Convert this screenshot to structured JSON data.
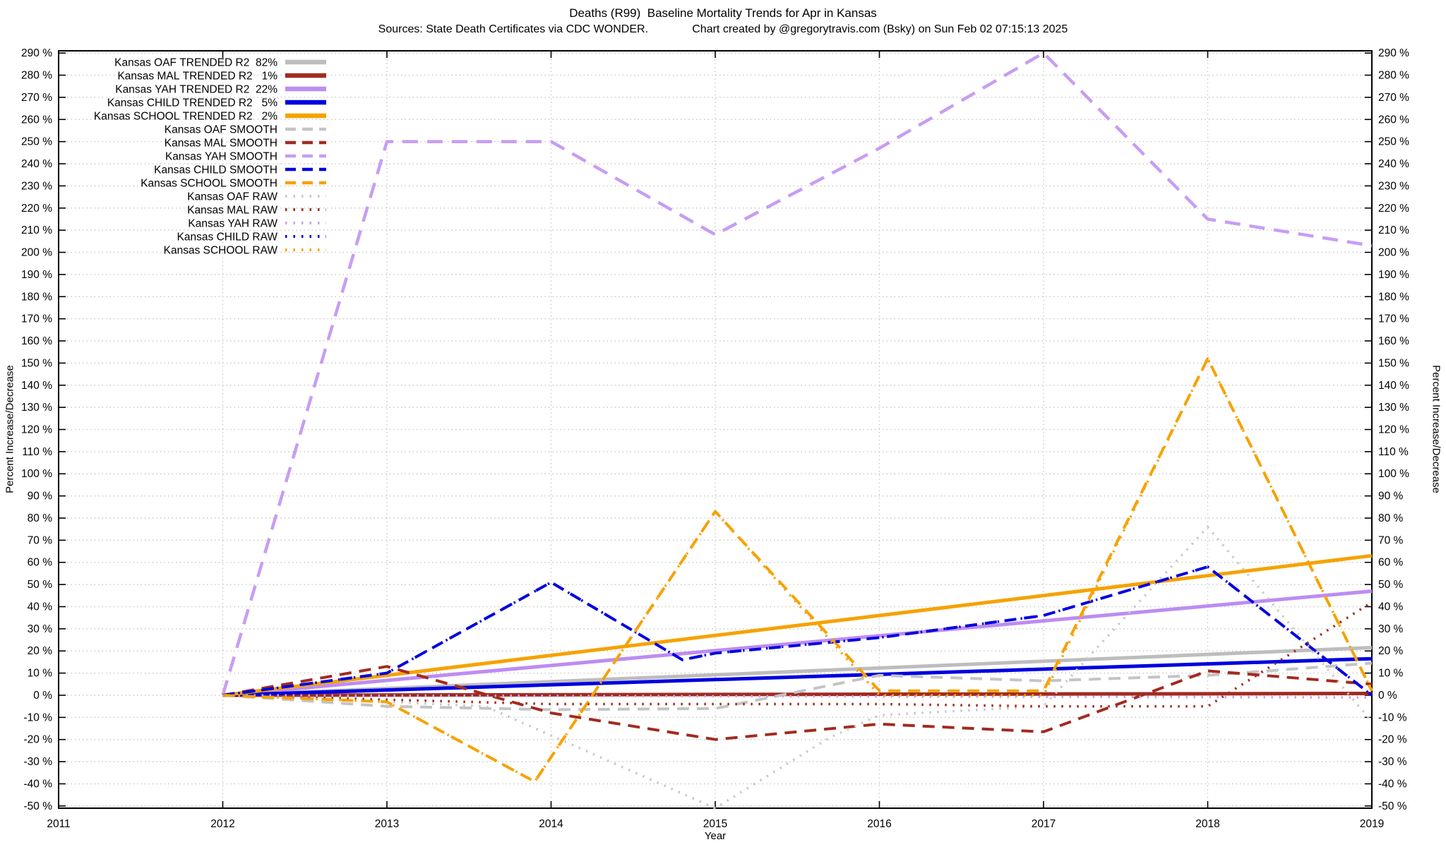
{
  "header": {
    "title": "Deaths (R99)  Baseline Mortality Trends for Apr in Kansas",
    "subtitle": "Sources: State Death Certificates via CDC WONDER.              Chart created by @gregorytravis.com (Bsky) on Sun Feb 02 07:15:13 2025"
  },
  "colors": {
    "gray": "#bdbdbd",
    "dark_red": "#a12b20",
    "violet": "#bd8cf2",
    "violet_light": "#c79df4",
    "blue": "#0000e0",
    "orange": "#f6a201",
    "grid": "#c9c9c9",
    "axis": "#000000",
    "background": "#ffffff"
  },
  "chart_data": {
    "type": "line",
    "title": "Deaths (R99)  Baseline Mortality Trends for Apr in Kansas",
    "subtitle": "Sources: State Death Certificates via CDC WONDER.  Chart created by @gregorytravis.com (Bsky) on Sun Feb 02 07:15:13 2025",
    "xlabel": "Year",
    "ylabel": "Percent Increase/Decrease",
    "y2label": "Percent Increase/Decrease",
    "xlim": [
      2011,
      2019
    ],
    "ylim": [
      -51,
      291
    ],
    "x_ticks": [
      2011,
      2012,
      2013,
      2014,
      2015,
      2016,
      2017,
      2018,
      2019
    ],
    "y_ticks": {
      "min": -50,
      "max": 290,
      "step": 10,
      "suffix": " %"
    },
    "grid": true,
    "legend_position": "top-left",
    "series": [
      {
        "key": "oaf-trended",
        "legend_label": "Kansas OAF TRENDED R2  82%",
        "r2_percent": 82,
        "color": "#bdbdbd",
        "style": "solid",
        "width": 5,
        "points": [
          [
            2012,
            0
          ],
          [
            2019,
            21.5
          ]
        ]
      },
      {
        "key": "mal-trended",
        "legend_label": "Kansas MAL TRENDED R2   1%",
        "r2_percent": 1,
        "color": "#a12b20",
        "style": "solid",
        "width": 5,
        "points": [
          [
            2012,
            0
          ],
          [
            2019,
            0.8
          ]
        ]
      },
      {
        "key": "yah-trended",
        "legend_label": "Kansas YAH TRENDED R2  22%",
        "r2_percent": 22,
        "color": "#bd8cf2",
        "style": "solid",
        "width": 5,
        "points": [
          [
            2012,
            0
          ],
          [
            2019,
            47
          ]
        ]
      },
      {
        "key": "child-trended",
        "legend_label": "Kansas CHILD TRENDED R2   5%",
        "r2_percent": 5,
        "color": "#0000e0",
        "style": "solid",
        "width": 5,
        "points": [
          [
            2012,
            0
          ],
          [
            2019,
            16.5
          ]
        ]
      },
      {
        "key": "school-trended",
        "legend_label": "Kansas SCHOOL TRENDED R2   2%",
        "r2_percent": 2,
        "color": "#f6a201",
        "style": "solid",
        "width": 5,
        "points": [
          [
            2012,
            0
          ],
          [
            2019,
            63
          ]
        ]
      },
      {
        "key": "oaf-smooth",
        "legend_label": "Kansas OAF SMOOTH",
        "color": "#c4c4c4",
        "style": "dashed",
        "width": 4,
        "points": [
          [
            2012,
            0
          ],
          [
            2013,
            -5
          ],
          [
            2014,
            -6.5
          ],
          [
            2015,
            -6
          ],
          [
            2016,
            9
          ],
          [
            2017,
            6.5
          ],
          [
            2018,
            9
          ],
          [
            2019,
            14.5
          ]
        ]
      },
      {
        "key": "mal-smooth",
        "legend_label": "Kansas MAL SMOOTH",
        "color": "#a12b20",
        "style": "dashed",
        "width": 4,
        "points": [
          [
            2012,
            0
          ],
          [
            2013,
            13
          ],
          [
            2014,
            -8
          ],
          [
            2015,
            -20
          ],
          [
            2016,
            -13
          ],
          [
            2017,
            -16.5
          ],
          [
            2018,
            11
          ],
          [
            2019,
            5
          ]
        ]
      },
      {
        "key": "yah-smooth",
        "legend_label": "Kansas YAH SMOOTH",
        "color": "#c79df4",
        "style": "dashed",
        "width": 4.5,
        "dash": "22 13",
        "points": [
          [
            2012,
            0
          ],
          [
            2013,
            250
          ],
          [
            2014,
            250
          ],
          [
            2015,
            208
          ],
          [
            2016,
            247
          ],
          [
            2017,
            290
          ],
          [
            2018,
            215
          ],
          [
            2019,
            203
          ]
        ]
      },
      {
        "key": "child-smooth",
        "legend_label": "Kansas CHILD SMOOTH",
        "color": "#0000e0",
        "style": "dashed",
        "width": 4,
        "points": [
          [
            2012,
            0
          ],
          [
            2013,
            10
          ],
          [
            2014,
            51
          ],
          [
            2014.8,
            16
          ],
          [
            2015,
            19
          ],
          [
            2016,
            26
          ],
          [
            2017,
            36
          ],
          [
            2018,
            58
          ],
          [
            2019,
            0
          ]
        ]
      },
      {
        "key": "school-smooth",
        "legend_label": "Kansas SCHOOL SMOOTH",
        "color": "#f6a201",
        "style": "dashed",
        "width": 4,
        "points": [
          [
            2012,
            0
          ],
          [
            2013,
            -3
          ],
          [
            2013.9,
            -39
          ],
          [
            2015,
            83
          ],
          [
            2016,
            2
          ],
          [
            2017,
            2
          ],
          [
            2018,
            152
          ],
          [
            2019,
            2
          ]
        ]
      },
      {
        "key": "oaf-raw",
        "legend_label": "Kansas OAF RAW",
        "color": "#c9c9c9",
        "style": "dotted",
        "width": 3.5,
        "points": [
          [
            2012,
            0
          ],
          [
            2013,
            -3
          ],
          [
            2013.6,
            -5
          ],
          [
            2015,
            -51
          ],
          [
            2015.7,
            -19
          ],
          [
            2016,
            -9
          ],
          [
            2017,
            -5
          ],
          [
            2018,
            76
          ],
          [
            2019,
            -12
          ]
        ]
      },
      {
        "key": "mal-raw",
        "legend_label": "Kansas MAL RAW",
        "color": "#a12b20",
        "style": "dotted",
        "width": 3.5,
        "points": [
          [
            2012,
            0
          ],
          [
            2013,
            -2
          ],
          [
            2014,
            -4
          ],
          [
            2016,
            -4
          ],
          [
            2017,
            -5
          ],
          [
            2018,
            -5
          ],
          [
            2019,
            42
          ]
        ]
      },
      {
        "key": "yah-raw",
        "legend_label": "Kansas YAH RAW",
        "color": "#c9a1f0",
        "style": "dotted",
        "width": 3.5,
        "points": [
          [
            2012,
            0
          ],
          [
            2019,
            -1
          ]
        ]
      },
      {
        "key": "child-raw",
        "legend_label": "Kansas CHILD RAW",
        "color": "#0000e0",
        "style": "dotted",
        "width": 3.5,
        "points": [
          [
            2012,
            0
          ],
          [
            2013,
            10
          ],
          [
            2014,
            51
          ],
          [
            2014.8,
            16
          ],
          [
            2015,
            19
          ],
          [
            2016,
            26
          ],
          [
            2017,
            36
          ],
          [
            2018,
            58
          ],
          [
            2019,
            0
          ]
        ]
      },
      {
        "key": "school-raw",
        "legend_label": "Kansas SCHOOL RAW",
        "color": "#f6a201",
        "style": "dotted",
        "width": 3.5,
        "points": [
          [
            2012,
            0
          ],
          [
            2013,
            -3
          ],
          [
            2013.9,
            -39
          ],
          [
            2015,
            83
          ],
          [
            2016,
            0
          ],
          [
            2017,
            0
          ],
          [
            2018,
            152
          ],
          [
            2019,
            2
          ]
        ]
      }
    ]
  }
}
